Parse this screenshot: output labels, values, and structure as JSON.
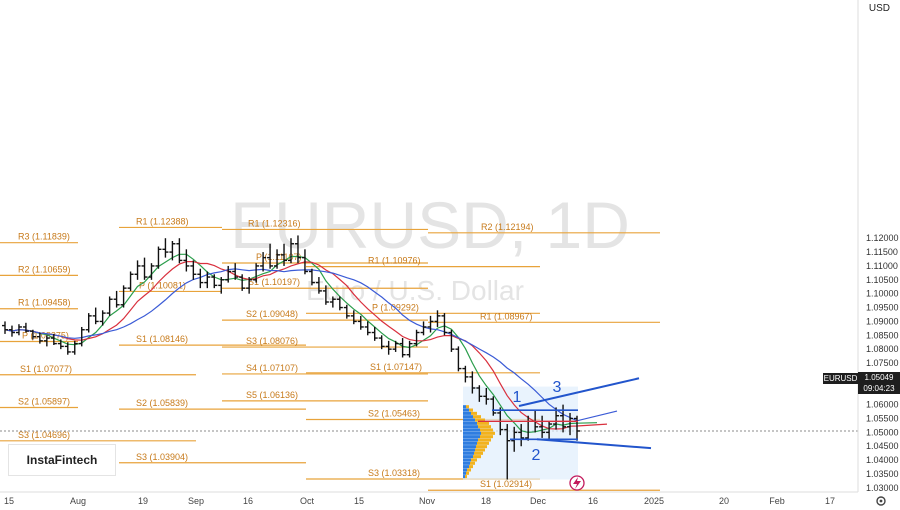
{
  "chart_data": {
    "type": "candlestick-ohlc",
    "symbol_watermark": "EURUSD, 1D",
    "subtitle_watermark": "Euro / U.S. Dollar",
    "currency": "USD",
    "last_price_symbol": "EURUSD",
    "last_price": "1.05049",
    "last_price_countdown": "09:04:23",
    "brand": "InstaFintech",
    "ylim": [
      1.0285,
      1.203
    ],
    "yticks": [
      "1.12000",
      "1.11500",
      "1.11000",
      "1.10500",
      "1.10000",
      "1.09500",
      "1.09000",
      "1.08500",
      "1.08000",
      "1.07500",
      "1.07000",
      "1.06500",
      "1.06000",
      "1.05500",
      "1.05000",
      "1.04500",
      "1.04000",
      "1.03500",
      "1.03000"
    ],
    "xticks": [
      "15",
      "Aug",
      "19",
      "Sep",
      "16",
      "Oct",
      "15",
      "Nov",
      "18",
      "Dec",
      "16",
      "2025",
      "20",
      "Feb",
      "17"
    ],
    "pivot_levels": [
      {
        "label": "R1 (1.12388)",
        "value": 1.12388
      },
      {
        "label": "R3 (1.11839)",
        "value": 1.11839
      },
      {
        "label": "R2 (1.10659)",
        "value": 1.10659
      },
      {
        "label": "R1 (1.09458)",
        "value": 1.09458
      },
      {
        "label": "P (1.08275)",
        "value": 1.08275
      },
      {
        "label": "S1 (1.07077)",
        "value": 1.07077
      },
      {
        "label": "S2 (1.05897)",
        "value": 1.05897
      },
      {
        "label": "S3 (1.04696)",
        "value": 1.04696
      },
      {
        "label": "P (1.10081)",
        "value": 1.10081
      },
      {
        "label": "S1 (1.08146)",
        "value": 1.08146
      },
      {
        "label": "S2 (1.05839)",
        "value": 1.05839
      },
      {
        "label": "S3 (1.03904)",
        "value": 1.03904
      },
      {
        "label": "R1 (1.12316)",
        "value": 1.12316
      },
      {
        "label": "P (1.11107)",
        "value": 1.11107
      },
      {
        "label": "S1 (1.10197)",
        "value": 1.10197
      },
      {
        "label": "S2 (1.09048)",
        "value": 1.09048
      },
      {
        "label": "S3 (1.08076)",
        "value": 1.08076
      },
      {
        "label": "S4 (1.07107)",
        "value": 1.07107
      },
      {
        "label": "S5 (1.06136)",
        "value": 1.06136
      },
      {
        "label": "R2 (1.12194)",
        "value": 1.12194
      },
      {
        "label": "R1 (1.10976)",
        "value": 1.10976
      },
      {
        "label": "P (1.09292)",
        "value": 1.09292
      },
      {
        "label": "R1 (1.08967)",
        "value": 1.08967
      },
      {
        "label": "S1 (1.07147)",
        "value": 1.07147
      },
      {
        "label": "S2 (1.05463)",
        "value": 1.05463
      },
      {
        "label": "S3 (1.03318)",
        "value": 1.03318
      },
      {
        "label": "S1 (1.02914)",
        "value": 1.02914
      }
    ],
    "wave_labels": [
      "1",
      "2",
      "3"
    ],
    "moving_averages": [
      {
        "color": "#2a9d4b"
      },
      {
        "color": "#d9303e"
      },
      {
        "color": "#3b5bd6"
      }
    ],
    "ohlc": [
      [
        1.0885,
        1.09,
        1.0855,
        1.087
      ],
      [
        1.087,
        1.0885,
        1.0845,
        1.086
      ],
      [
        1.086,
        1.089,
        1.085,
        1.088
      ],
      [
        1.088,
        1.0895,
        1.086,
        1.0865
      ],
      [
        1.0865,
        1.087,
        1.0835,
        1.0845
      ],
      [
        1.0845,
        1.086,
        1.082,
        1.083
      ],
      [
        1.083,
        1.085,
        1.081,
        1.084
      ],
      [
        1.084,
        1.0855,
        1.0815,
        1.082
      ],
      [
        1.082,
        1.0835,
        1.08,
        1.081
      ],
      [
        1.081,
        1.0825,
        1.078,
        1.079
      ],
      [
        1.079,
        1.083,
        1.078,
        1.082
      ],
      [
        1.082,
        1.088,
        1.081,
        1.087
      ],
      [
        1.087,
        1.093,
        1.086,
        1.092
      ],
      [
        1.092,
        1.095,
        1.089,
        1.09
      ],
      [
        1.09,
        1.094,
        1.0885,
        1.093
      ],
      [
        1.093,
        1.099,
        1.092,
        1.098
      ],
      [
        1.098,
        1.101,
        1.095,
        1.096
      ],
      [
        1.096,
        1.103,
        1.095,
        1.102
      ],
      [
        1.102,
        1.108,
        1.101,
        1.107
      ],
      [
        1.107,
        1.112,
        1.105,
        1.11
      ],
      [
        1.11,
        1.113,
        1.105,
        1.106
      ],
      [
        1.106,
        1.111,
        1.105,
        1.11
      ],
      [
        1.11,
        1.117,
        1.109,
        1.116
      ],
      [
        1.116,
        1.12,
        1.113,
        1.115
      ],
      [
        1.115,
        1.119,
        1.112,
        1.118
      ],
      [
        1.118,
        1.12,
        1.111,
        1.112
      ],
      [
        1.112,
        1.116,
        1.108,
        1.11
      ],
      [
        1.11,
        1.112,
        1.105,
        1.107
      ],
      [
        1.107,
        1.109,
        1.102,
        1.104
      ],
      [
        1.104,
        1.108,
        1.102,
        1.106
      ],
      [
        1.106,
        1.107,
        1.102,
        1.103
      ],
      [
        1.103,
        1.106,
        1.1,
        1.105
      ],
      [
        1.105,
        1.11,
        1.104,
        1.108
      ],
      [
        1.108,
        1.111,
        1.105,
        1.106
      ],
      [
        1.106,
        1.107,
        1.101,
        1.102
      ],
      [
        1.102,
        1.106,
        1.1,
        1.105
      ],
      [
        1.105,
        1.111,
        1.104,
        1.11
      ],
      [
        1.11,
        1.115,
        1.108,
        1.113
      ],
      [
        1.113,
        1.118,
        1.109,
        1.11
      ],
      [
        1.11,
        1.116,
        1.109,
        1.114
      ],
      [
        1.114,
        1.118,
        1.11,
        1.112
      ],
      [
        1.112,
        1.12,
        1.111,
        1.118
      ],
      [
        1.118,
        1.121,
        1.111,
        1.113
      ],
      [
        1.113,
        1.116,
        1.107,
        1.108
      ],
      [
        1.108,
        1.109,
        1.103,
        1.104
      ],
      [
        1.104,
        1.106,
        1.1,
        1.101
      ],
      [
        1.101,
        1.103,
        1.096,
        1.097
      ],
      [
        1.097,
        1.099,
        1.095,
        1.098
      ],
      [
        1.098,
        1.099,
        1.094,
        1.095
      ],
      [
        1.095,
        1.096,
        1.091,
        1.092
      ],
      [
        1.092,
        1.094,
        1.089,
        1.09
      ],
      [
        1.09,
        1.092,
        1.087,
        1.088
      ],
      [
        1.088,
        1.09,
        1.085,
        1.086
      ],
      [
        1.086,
        1.088,
        1.083,
        1.084
      ],
      [
        1.084,
        1.085,
        1.08,
        1.081
      ],
      [
        1.081,
        1.083,
        1.078,
        1.08
      ],
      [
        1.08,
        1.083,
        1.079,
        1.082
      ],
      [
        1.082,
        1.084,
        1.077,
        1.078
      ],
      [
        1.078,
        1.083,
        1.077,
        1.082
      ],
      [
        1.082,
        1.087,
        1.081,
        1.086
      ],
      [
        1.086,
        1.09,
        1.085,
        1.088
      ],
      [
        1.088,
        1.092,
        1.086,
        1.09
      ],
      [
        1.09,
        1.094,
        1.088,
        1.092
      ],
      [
        1.092,
        1.093,
        1.085,
        1.086
      ],
      [
        1.086,
        1.087,
        1.079,
        1.08
      ],
      [
        1.08,
        1.081,
        1.072,
        1.073
      ],
      [
        1.073,
        1.074,
        1.068,
        1.07
      ],
      [
        1.07,
        1.072,
        1.064,
        1.066
      ],
      [
        1.066,
        1.067,
        1.061,
        1.063
      ],
      [
        1.063,
        1.066,
        1.06,
        1.062
      ],
      [
        1.062,
        1.063,
        1.056,
        1.057
      ],
      [
        1.057,
        1.059,
        1.049,
        1.051
      ],
      [
        1.051,
        1.053,
        1.033,
        1.047
      ],
      [
        1.047,
        1.052,
        1.043,
        1.05
      ],
      [
        1.05,
        1.053,
        1.045,
        1.048
      ],
      [
        1.048,
        1.056,
        1.047,
        1.054
      ],
      [
        1.054,
        1.058,
        1.05,
        1.052
      ],
      [
        1.052,
        1.056,
        1.048,
        1.05
      ],
      [
        1.05,
        1.054,
        1.047,
        1.053
      ],
      [
        1.053,
        1.059,
        1.051,
        1.056
      ],
      [
        1.056,
        1.06,
        1.05,
        1.052
      ],
      [
        1.052,
        1.057,
        1.049,
        1.055
      ],
      [
        1.055,
        1.056,
        1.047,
        1.0505
      ]
    ]
  }
}
